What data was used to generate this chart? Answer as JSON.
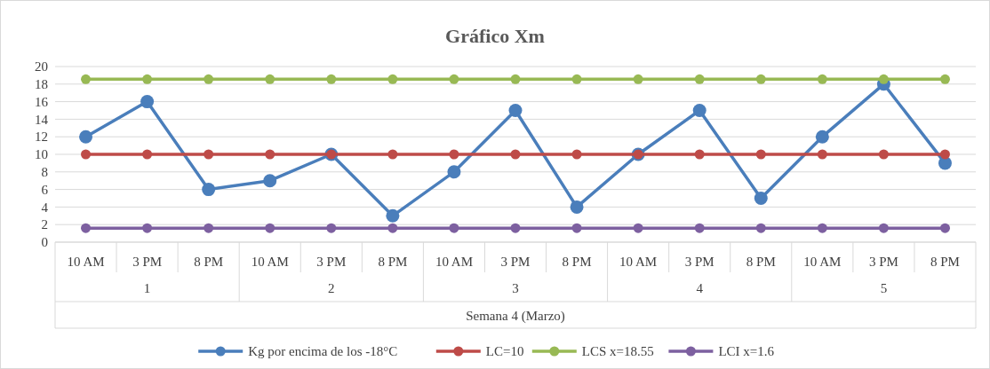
{
  "chart_data": {
    "type": "line",
    "title": "Gráfico Xm",
    "xlabel": "Semana 4 (Marzo)",
    "categories": [
      "10 AM",
      "3 PM",
      "8 PM",
      "10 AM",
      "3 PM",
      "8 PM",
      "10 AM",
      "3 PM",
      "8 PM",
      "10 AM",
      "3 PM",
      "8 PM",
      "10 AM",
      "3 PM",
      "8 PM"
    ],
    "annotations": [
      "1",
      "2",
      "3",
      "4",
      "5"
    ],
    "series": [
      {
        "name": "Kg por encima de los -18°C",
        "color": "#4a7ebb",
        "values": [
          12,
          16,
          6,
          7,
          10,
          3,
          8,
          15,
          4,
          10,
          15,
          5,
          12,
          18,
          9
        ]
      },
      {
        "name": "LC=10",
        "color": "#be4b48",
        "values": [
          10,
          10,
          10,
          10,
          10,
          10,
          10,
          10,
          10,
          10,
          10,
          10,
          10,
          10,
          10
        ]
      },
      {
        "name": "LCS x=18.55",
        "color": "#98b954",
        "values": [
          18.55,
          18.55,
          18.55,
          18.55,
          18.55,
          18.55,
          18.55,
          18.55,
          18.55,
          18.55,
          18.55,
          18.55,
          18.55,
          18.55,
          18.55
        ]
      },
      {
        "name": "LCI x=1.6",
        "color": "#7d60a0",
        "values": [
          1.6,
          1.6,
          1.6,
          1.6,
          1.6,
          1.6,
          1.6,
          1.6,
          1.6,
          1.6,
          1.6,
          1.6,
          1.6,
          1.6,
          1.6
        ]
      }
    ],
    "ylim": [
      0,
      20
    ],
    "yticks": [
      0,
      2,
      4,
      6,
      8,
      10,
      12,
      14,
      16,
      18,
      20
    ],
    "grid": "y",
    "legend": "bottom",
    "marker": "circle",
    "line_style": "solid"
  }
}
